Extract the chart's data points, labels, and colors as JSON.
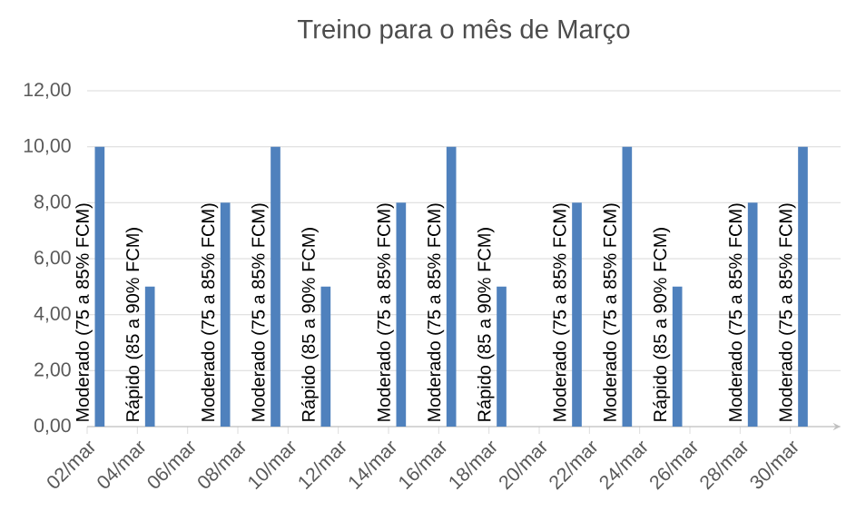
{
  "chart_data": {
    "type": "bar",
    "title": "Treino para o mês de Março",
    "series": [
      {
        "name": "Moderado (75 a 85% FCM)",
        "color": "#4f81bd",
        "x": [
          "--03-02",
          "--03-07",
          "--03-09",
          "--03-14",
          "--03-16",
          "--03-21",
          "--03-23",
          "--03-28",
          "--03-30"
        ],
        "values": [
          10,
          8,
          10,
          8,
          10,
          8,
          10,
          8,
          10
        ]
      },
      {
        "name": "Rápido (85 a 90% FCM)",
        "color": "#4f81bd",
        "x": [
          "--03-04",
          "--03-11",
          "--03-18",
          "--03-25"
        ],
        "values": [
          5,
          5,
          5,
          5
        ]
      }
    ],
    "xlim": [
      "--03-02",
      "--04-01"
    ],
    "xticks": [
      {
        "value": "--03-02",
        "label": "02/mar"
      },
      {
        "value": "--03-04",
        "label": "04/mar"
      },
      {
        "value": "--03-06",
        "label": "06/mar"
      },
      {
        "value": "--03-08",
        "label": "08/mar"
      },
      {
        "value": "--03-10",
        "label": "10/mar"
      },
      {
        "value": "--03-12",
        "label": "12/mar"
      },
      {
        "value": "--03-14",
        "label": "14/mar"
      },
      {
        "value": "--03-16",
        "label": "16/mar"
      },
      {
        "value": "--03-18",
        "label": "18/mar"
      },
      {
        "value": "--03-20",
        "label": "20/mar"
      },
      {
        "value": "--03-22",
        "label": "22/mar"
      },
      {
        "value": "--03-24",
        "label": "24/mar"
      },
      {
        "value": "--03-26",
        "label": "26/mar"
      },
      {
        "value": "--03-28",
        "label": "28/mar"
      },
      {
        "value": "--03-30",
        "label": "30/mar"
      }
    ],
    "ylim": [
      0,
      12
    ],
    "yticks": [
      {
        "value": 0,
        "label": "0,00"
      },
      {
        "value": 2,
        "label": "2,00"
      },
      {
        "value": 4,
        "label": "4,00"
      },
      {
        "value": 6,
        "label": "6,00"
      },
      {
        "value": 8,
        "label": "8,00"
      },
      {
        "value": 10,
        "label": "10,00"
      },
      {
        "value": 12,
        "label": "12,00"
      }
    ],
    "grid": "y"
  }
}
